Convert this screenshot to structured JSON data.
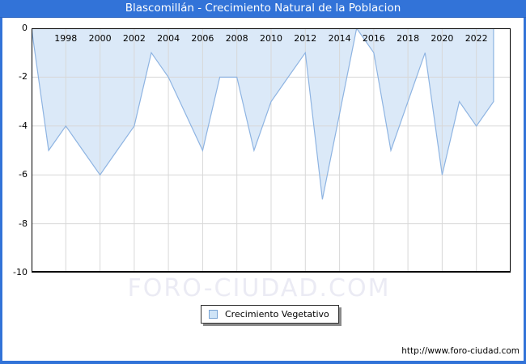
{
  "title": "Blascomillán - Crecimiento Natural de la Poblacion",
  "watermark": "FORO-CIUDAD.COM",
  "legend": {
    "label": "Crecimiento Vegetativo"
  },
  "footer": {
    "url": "http://www.foro-ciudad.com"
  },
  "colors": {
    "titlebar": "#3273d8",
    "frame": "#3273d8",
    "area_fill": "#dbe9f8",
    "area_line": "#8eb4e2",
    "gridline": "#d8d8d8",
    "plot_border": "#000000",
    "watermark_text": "#ebebf4",
    "legend_swatch_fill": "#cfe4f7",
    "legend_swatch_border": "#7aa4d4"
  },
  "chart_data": {
    "type": "area",
    "title": "Blascomillán - Crecimiento Natural de la Poblacion",
    "xlabel": "",
    "ylabel": "",
    "x_range": [
      1996,
      2024
    ],
    "ylim": [
      -10,
      0
    ],
    "grid": true,
    "legend_position": "bottom-center",
    "x_tick_years": [
      1998,
      2000,
      2002,
      2004,
      2006,
      2008,
      2010,
      2012,
      2014,
      2016,
      2018,
      2020,
      2022
    ],
    "x_tick_labels": [
      "1998",
      "2000",
      "2002",
      "2004",
      "2006",
      "2008",
      "2010",
      "2012",
      "2014",
      "2016",
      "2018",
      "2020",
      "2022"
    ],
    "y_ticks": [
      0,
      -2,
      -4,
      -6,
      -8,
      -10
    ],
    "y_tick_labels": [
      "0",
      "-2",
      "-4",
      "-6",
      "-8",
      "-10"
    ],
    "y_grid_values": [
      -2,
      -4,
      -6,
      -8
    ],
    "series": [
      {
        "name": "Crecimiento Vegetativo",
        "x": [
          1996,
          1997,
          1998,
          1999,
          2000,
          2001,
          2002,
          2003,
          2004,
          2005,
          2006,
          2007,
          2008,
          2009,
          2010,
          2011,
          2012,
          2013,
          2014,
          2015,
          2016,
          2017,
          2018,
          2019,
          2020,
          2021,
          2022,
          2023
        ],
        "values": [
          0,
          -5,
          -4,
          -5,
          -6,
          -5,
          -4,
          -1,
          -2,
          -3.5,
          -5,
          -2,
          -2,
          -5,
          -3,
          -2,
          -1,
          -7,
          -3.5,
          0,
          -1,
          -5,
          -3,
          -1,
          -6,
          -3,
          -4,
          -3
        ]
      }
    ]
  }
}
